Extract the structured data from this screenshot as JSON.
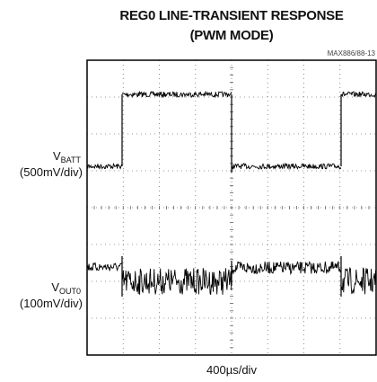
{
  "title": [
    "REG0 LINE-TRANSIENT RESPONSE",
    "(PWM MODE)"
  ],
  "figure_id": "MAX886/88-13",
  "channels": [
    {
      "symbol": "V",
      "subscript": "BATT",
      "scale": "(500mV/div)"
    },
    {
      "symbol": "V",
      "subscript": "OUT0",
      "scale": "(100mV/div)"
    }
  ],
  "time_scale": "400µs/div"
}
